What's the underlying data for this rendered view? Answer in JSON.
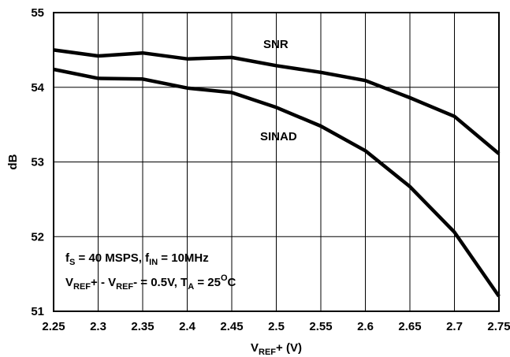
{
  "chart_data": {
    "type": "line",
    "xlabel": {
      "main": "V",
      "sub": "REF",
      "suffix": "+ (V)"
    },
    "ylabel": "dB",
    "xlim": [
      2.25,
      2.75
    ],
    "ylim": [
      51,
      55
    ],
    "grid": true,
    "x_ticks": [
      "2.25",
      "2.3",
      "2.35",
      "2.4",
      "2.45",
      "2.5",
      "2.55",
      "2.6",
      "2.65",
      "2.7",
      "2.75"
    ],
    "y_ticks": [
      "51",
      "52",
      "53",
      "54",
      "55"
    ],
    "x": [
      2.25,
      2.3,
      2.35,
      2.4,
      2.45,
      2.5,
      2.55,
      2.6,
      2.65,
      2.7,
      2.75
    ],
    "series": [
      {
        "name": "SNR",
        "values": [
          54.5,
          54.42,
          54.46,
          54.38,
          54.4,
          54.29,
          54.2,
          54.09,
          53.86,
          53.61,
          53.11
        ]
      },
      {
        "name": "SINAD",
        "values": [
          54.24,
          54.12,
          54.11,
          53.99,
          53.93,
          53.73,
          53.48,
          53.15,
          52.67,
          52.06,
          51.2
        ]
      }
    ],
    "annotations": {
      "line1": {
        "f1": "f",
        "f1_sub": "S",
        "t1": " = 40 MSPS, f",
        "f2_sub": "IN",
        "t2": " = 10MHz"
      },
      "line2": {
        "v1": "V",
        "v1_sub": "REF",
        "t1": "+ - V",
        "v2_sub": "REF",
        "t2": "- = 0.5V, T",
        "t_sub": "A",
        "t3": " = 25",
        "sup": "O",
        "t4": "C"
      }
    }
  }
}
